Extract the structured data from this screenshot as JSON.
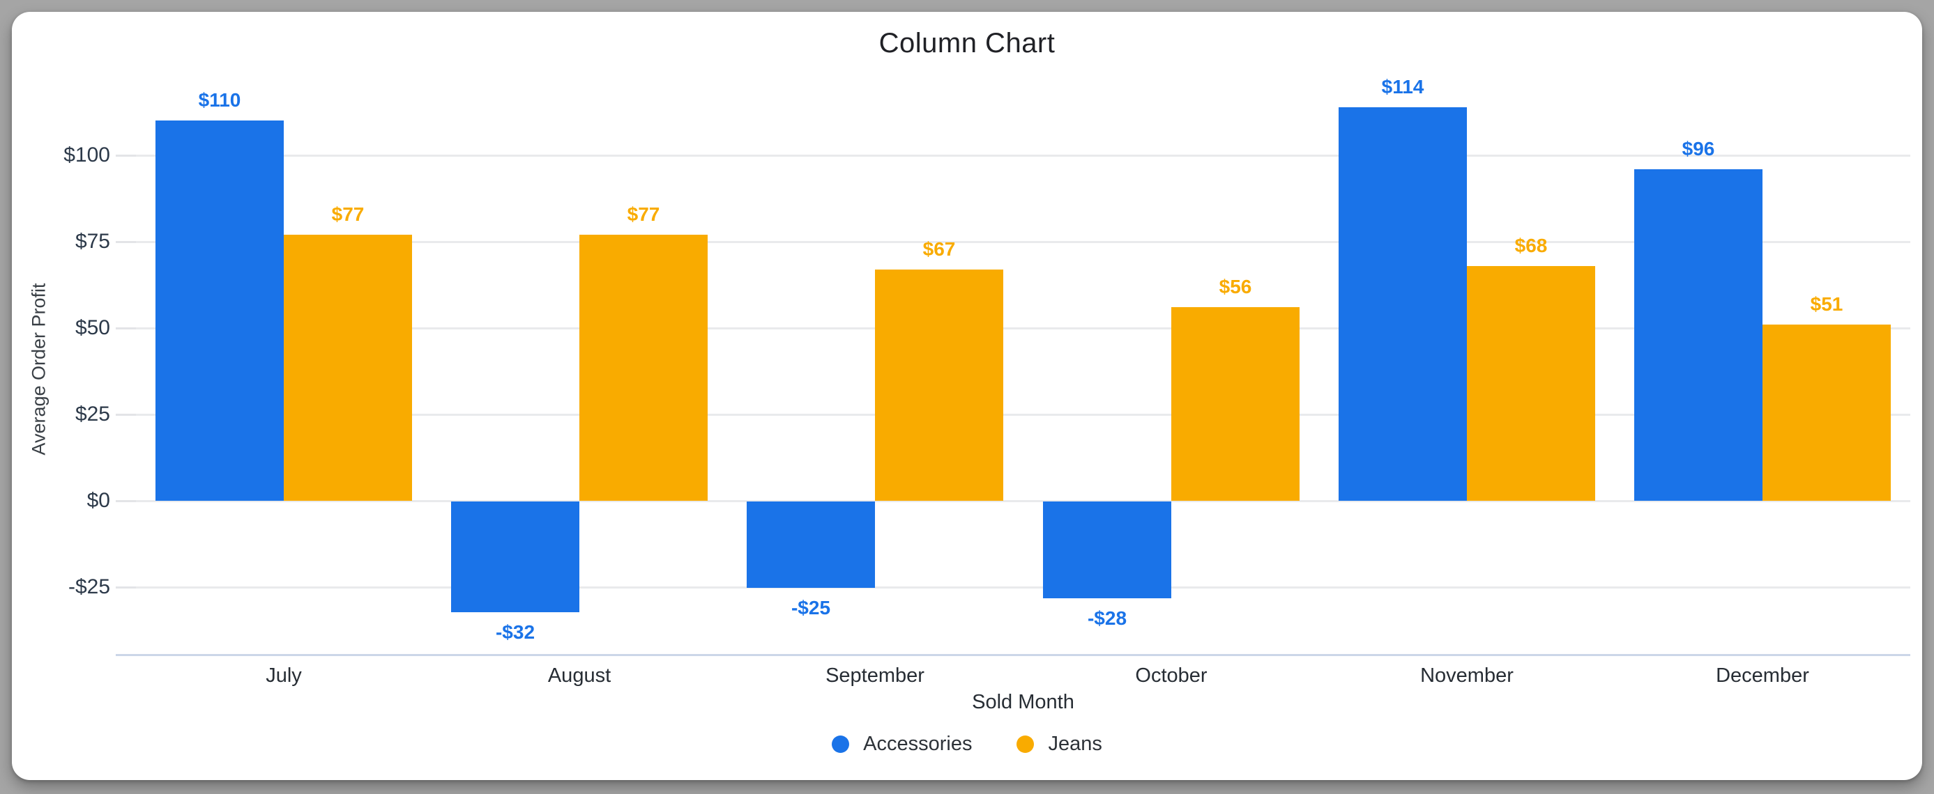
{
  "window": {
    "background_color": "#a5a5a5",
    "card_color": "#ffffff"
  },
  "chart_data": {
    "type": "bar",
    "title": "Column Chart",
    "xlabel": "Sold Month",
    "ylabel": "Average Order Profit",
    "categories": [
      "July",
      "August",
      "September",
      "October",
      "November",
      "December"
    ],
    "series": [
      {
        "name": "Accessories",
        "color": "#1a73e8",
        "values": [
          110,
          -32,
          -25,
          -28,
          114,
          96
        ],
        "labels": [
          "$110",
          "-$32",
          "-$25",
          "-$28",
          "$114",
          "$96"
        ]
      },
      {
        "name": "Jeans",
        "color": "#f9ab00",
        "values": [
          77,
          77,
          67,
          56,
          68,
          51
        ],
        "labels": [
          "$77",
          "$77",
          "$67",
          "$56",
          "$68",
          "$51"
        ]
      }
    ],
    "y_ticks": [
      {
        "value": 100,
        "label": "$100"
      },
      {
        "value": 75,
        "label": "$75"
      },
      {
        "value": 50,
        "label": "$50"
      },
      {
        "value": 25,
        "label": "$25"
      },
      {
        "value": 0,
        "label": "$0"
      },
      {
        "value": -25,
        "label": "-$25"
      }
    ],
    "ylim": [
      -45,
      121
    ],
    "grid": true,
    "legend_position": "bottom"
  }
}
